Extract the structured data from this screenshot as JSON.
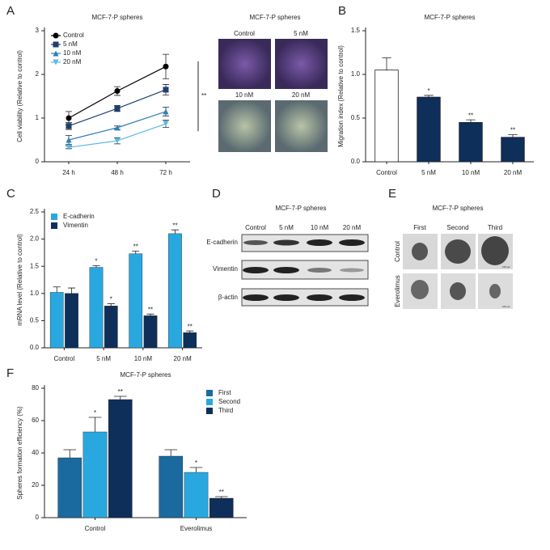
{
  "panel_labels": [
    "A",
    "B",
    "C",
    "D",
    "E",
    "F"
  ],
  "micrographs": {
    "title": "MCF-7-P spheres",
    "labels": [
      "Control",
      "5 nM",
      "10 nM",
      "20 nM"
    ]
  },
  "western_blot": {
    "title": "MCF-7-P spheres",
    "lanes": [
      "Control",
      "5 nM",
      "10 nM",
      "20 nM"
    ],
    "proteins": [
      "E-cadherin",
      "Vimentin",
      "β-actin"
    ]
  },
  "sphere_images": {
    "title": "MCF-7-P spheres",
    "columns": [
      "First",
      "Second",
      "Third"
    ],
    "rows": [
      "Control",
      "Everolimus"
    ],
    "scale_label": "100 μm"
  },
  "chart_data": [
    {
      "type": "line",
      "title": "MCF-7-P spheres",
      "y_label": "Cell viability (Relative to control)",
      "categories": [
        "24 h",
        "48 h",
        "72 h"
      ],
      "ylim": [
        0,
        3
      ],
      "yticks": [
        0,
        1,
        2,
        3
      ],
      "legend": "upper left",
      "significance": "**",
      "series": [
        {
          "name": "Control",
          "color": "#000000",
          "marker": "circle",
          "values": [
            1.0,
            1.62,
            2.18
          ],
          "errors": [
            0.15,
            0.1,
            0.28
          ]
        },
        {
          "name": "5 nM",
          "color": "#1f3f6e",
          "marker": "square",
          "values": [
            0.82,
            1.22,
            1.65
          ],
          "errors": [
            0.08,
            0.07,
            0.12
          ]
        },
        {
          "name": "10 nM",
          "color": "#2a7fb5",
          "marker": "triangle-up",
          "values": [
            0.5,
            0.78,
            1.15
          ],
          "errors": [
            0.1,
            0.04,
            0.1
          ]
        },
        {
          "name": "20 nM",
          "color": "#5ab8e8",
          "marker": "triangle-down",
          "values": [
            0.33,
            0.48,
            0.87
          ],
          "errors": [
            0.03,
            0.07,
            0.08
          ]
        }
      ]
    },
    {
      "type": "bar",
      "title": "MCF-7-P spheres",
      "y_label": "Migration index (Relative to control)",
      "categories": [
        "Control",
        "5 nM",
        "10 nM",
        "20 nM"
      ],
      "values": [
        1.05,
        0.74,
        0.45,
        0.28
      ],
      "errors": [
        0.14,
        0.02,
        0.03,
        0.03
      ],
      "colors": [
        "#ffffff",
        "#0d2f5a",
        "#0d2f5a",
        "#0d2f5a"
      ],
      "annotations": [
        null,
        "*",
        "**",
        "**"
      ],
      "ylim": [
        0,
        1.5
      ],
      "yticks": [
        {
          "value": 0,
          "label": "0.0"
        },
        0.5,
        {
          "value": 1,
          "label": "1.0"
        },
        1.5
      ]
    },
    {
      "type": "bar",
      "y_label": "mRNA level (Relative to control)",
      "legend": "upper left",
      "categories": [
        "Control",
        "5 nM",
        "10 nM",
        "20 nM"
      ],
      "ylim": [
        0,
        2.5
      ],
      "yticks": [
        {
          "value": 0,
          "label": "0.0"
        },
        0.5,
        {
          "value": 1,
          "label": "1.0"
        },
        1.5,
        {
          "value": 2,
          "label": "2.0"
        },
        2.5
      ],
      "series": [
        {
          "name": "E-cadherin",
          "color": "#29a8e0",
          "values": [
            1.02,
            1.48,
            1.73,
            2.1
          ],
          "errors": [
            0.1,
            0.03,
            0.05,
            0.07
          ],
          "annotations": [
            null,
            "*",
            "**",
            "**"
          ]
        },
        {
          "name": "Vimentin",
          "color": "#0d2f5a",
          "values": [
            1.0,
            0.77,
            0.59,
            0.28
          ],
          "errors": [
            0.1,
            0.04,
            0.03,
            0.03
          ],
          "annotations": [
            null,
            "*",
            "**",
            "**"
          ]
        }
      ]
    },
    {
      "type": "bar",
      "title": "MCF-7-P spheres",
      "y_label": "Spheres formation efficiency (%)",
      "legend": "upper right",
      "categories": [
        "Control",
        "Everolimus"
      ],
      "ylim": [
        0,
        80
      ],
      "yticks": [
        0,
        20,
        40,
        60,
        80
      ],
      "series": [
        {
          "name": "First",
          "color": "#1a6aa0",
          "values": [
            37,
            38
          ],
          "errors": [
            5,
            4
          ],
          "annotations": [
            null,
            null
          ]
        },
        {
          "name": "Second",
          "color": "#29a8e0",
          "values": [
            53,
            28
          ],
          "errors": [
            9,
            3
          ],
          "annotations": [
            "*",
            "*"
          ]
        },
        {
          "name": "Third",
          "color": "#0d2f5a",
          "values": [
            73,
            12
          ],
          "errors": [
            2,
            1
          ],
          "annotations": [
            "**",
            "**"
          ]
        }
      ]
    }
  ]
}
